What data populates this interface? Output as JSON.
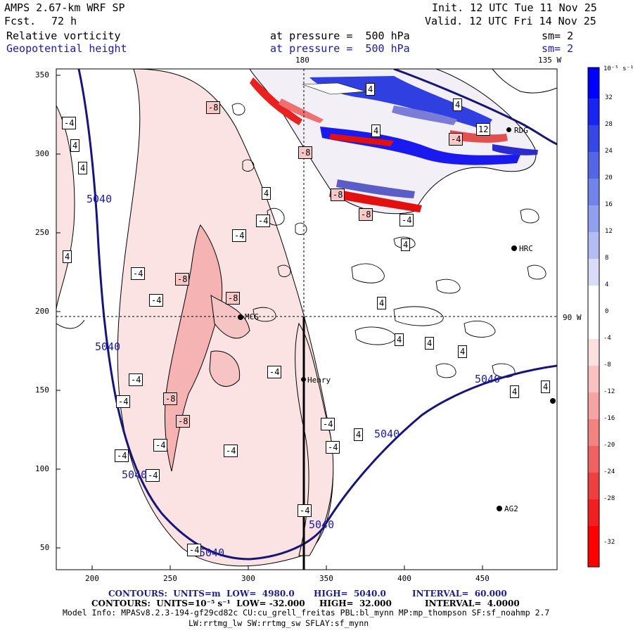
{
  "header": {
    "title": "AMPS 2.67-km WRF SP",
    "forecast_label": "Fcst.",
    "forecast_value": "72 h",
    "init": "Init. 12 UTC Tue 11 Nov 25",
    "valid": "Valid. 12 UTC Fri 14 Nov 25",
    "field1": {
      "name": "Relative vorticity",
      "pressure": "at pressure =  500 hPa",
      "sm": "sm= 2"
    },
    "field2": {
      "name": "Geopotential height",
      "pressure": "at pressure =  500 hPa",
      "sm": "sm= 2"
    }
  },
  "map": {
    "x_ticks": [
      "200",
      "250",
      "300",
      "350",
      "400",
      "450"
    ],
    "y_ticks": [
      "350",
      "300",
      "250",
      "200",
      "150",
      "100",
      "50"
    ],
    "meridian_labels": {
      "top_180": "180",
      "top_135w": "135 W",
      "right_90w": "90 W"
    },
    "stations": [
      {
        "id": "MCG",
        "label": "MCG"
      },
      {
        "id": "Henry",
        "label": "Henry"
      },
      {
        "id": "RDG",
        "label": "RDG"
      },
      {
        "id": "HRC",
        "label": "HRC"
      },
      {
        "id": "AG2",
        "label": "AG2"
      },
      {
        "id": "edge",
        "label": ""
      }
    ],
    "height_contour_value": "5040",
    "vorticity_labels": [
      "-4",
      "-8",
      "4",
      "12"
    ]
  },
  "colorbar": {
    "units": "10⁻⁵ s⁻¹",
    "ticks": [
      "32",
      "28",
      "24",
      "20",
      "16",
      "12",
      "8",
      "4",
      "0",
      "-4",
      "-8",
      "-12",
      "-16",
      "-20",
      "-24",
      "-28",
      "-32"
    ],
    "colors": [
      "#0000ff",
      "#1a24f2",
      "#3548e6",
      "#5466e6",
      "#7284ea",
      "#90a0ef",
      "#b2bdf4",
      "#d8dcf8",
      "#ffffff",
      "#fbe0e0",
      "#f8c2c2",
      "#f5a3a3",
      "#f28383",
      "#f06262",
      "#ef4040",
      "#f02020",
      "#ff0000"
    ]
  },
  "footer": {
    "line1": {
      "a": "CONTOURS:  UNITS=m  LOW=  4980.0",
      "b": "HIGH=  5040.0",
      "c": "INTERVAL=  60.000"
    },
    "line2": {
      "a": "CONTOURS:  UNITS=10⁻⁵ s⁻¹  LOW= -32.000",
      "b": "HIGH=  32.000",
      "c": "INTERVAL=  4.0000"
    },
    "line3": "Model Info: MPASv8.2.3-194-gf29cd82c CU:cu_grell_freitas PBL:bl_mynn MP:mp_thompson SF:sf_noahmp 2.7",
    "line4": "LW:rrtmg_lw SW:rrtmg_sw SFLAY:sf_mynn"
  }
}
